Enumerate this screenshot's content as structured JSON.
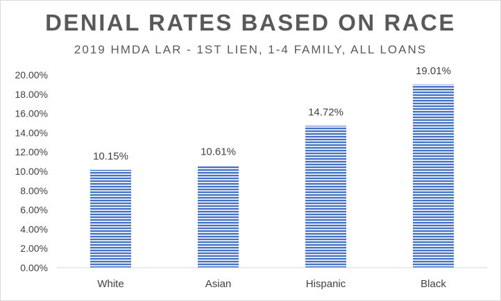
{
  "chart_data": {
    "type": "bar",
    "title": "DENIAL RATES BASED ON RACE",
    "subtitle": "2019 HMDA LAR - 1ST LIEN, 1-4 FAMILY, ALL LOANS",
    "categories": [
      "White",
      "Asian",
      "Hispanic",
      "Black"
    ],
    "values": [
      10.15,
      10.61,
      14.72,
      19.01
    ],
    "data_labels": [
      "10.15%",
      "10.61%",
      "14.72%",
      "19.01%"
    ],
    "ylim": [
      0,
      20
    ],
    "yticks": [
      0,
      2,
      4,
      6,
      8,
      10,
      12,
      14,
      16,
      18,
      20
    ],
    "ytick_labels": [
      "0.00%",
      "2.00%",
      "4.00%",
      "6.00%",
      "8.00%",
      "10.00%",
      "12.00%",
      "14.00%",
      "16.00%",
      "18.00%",
      "20.00%"
    ],
    "xlabel": "",
    "ylabel": "",
    "grid": false,
    "legend": "none",
    "bar_color": "#4472c4",
    "bar_pattern": "horizontal-stripes"
  }
}
